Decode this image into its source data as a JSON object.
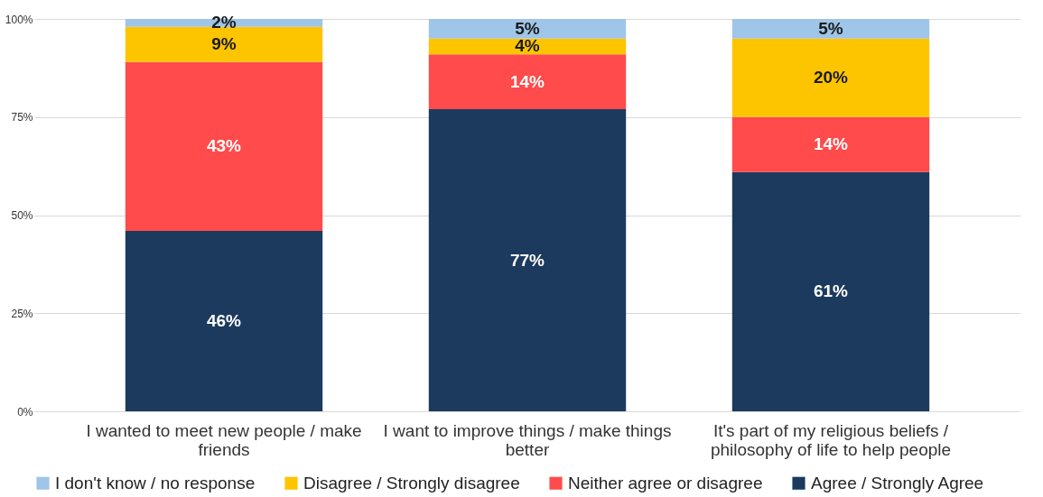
{
  "chart_data": {
    "type": "bar",
    "stacked": true,
    "categories": [
      "I wanted to meet new people / make friends",
      "I want to improve things / make things better",
      "It's part of my religious beliefs / philosophy of life to help people"
    ],
    "series": [
      {
        "name": "Agree / Strongly Agree",
        "color": "#1c3a5e",
        "values": [
          46,
          77,
          61
        ],
        "value_labels": [
          "46%",
          "77%",
          "61%"
        ]
      },
      {
        "name": "Neither agree or disagree",
        "color": "#ff4b4b",
        "values": [
          43,
          14,
          14
        ],
        "value_labels": [
          "43%",
          "14%",
          "14%"
        ]
      },
      {
        "name": "Disagree / Strongly disagree",
        "color": "#fdc400",
        "values": [
          9,
          4,
          20
        ],
        "value_labels": [
          "9%",
          "4%",
          "20%"
        ]
      },
      {
        "name": "I don't know / no response",
        "color": "#9fc5e8",
        "values": [
          2,
          5,
          5
        ],
        "value_labels": [
          "2%",
          "5%",
          "5%"
        ]
      }
    ],
    "ylim": [
      0,
      100
    ],
    "yticks": [
      {
        "value": 0,
        "label": "0%"
      },
      {
        "value": 25,
        "label": "25%"
      },
      {
        "value": 50,
        "label": "50%"
      },
      {
        "value": 75,
        "label": "75%"
      },
      {
        "value": 100,
        "label": "100%"
      }
    ],
    "grid": "y",
    "legend": "bottom"
  }
}
